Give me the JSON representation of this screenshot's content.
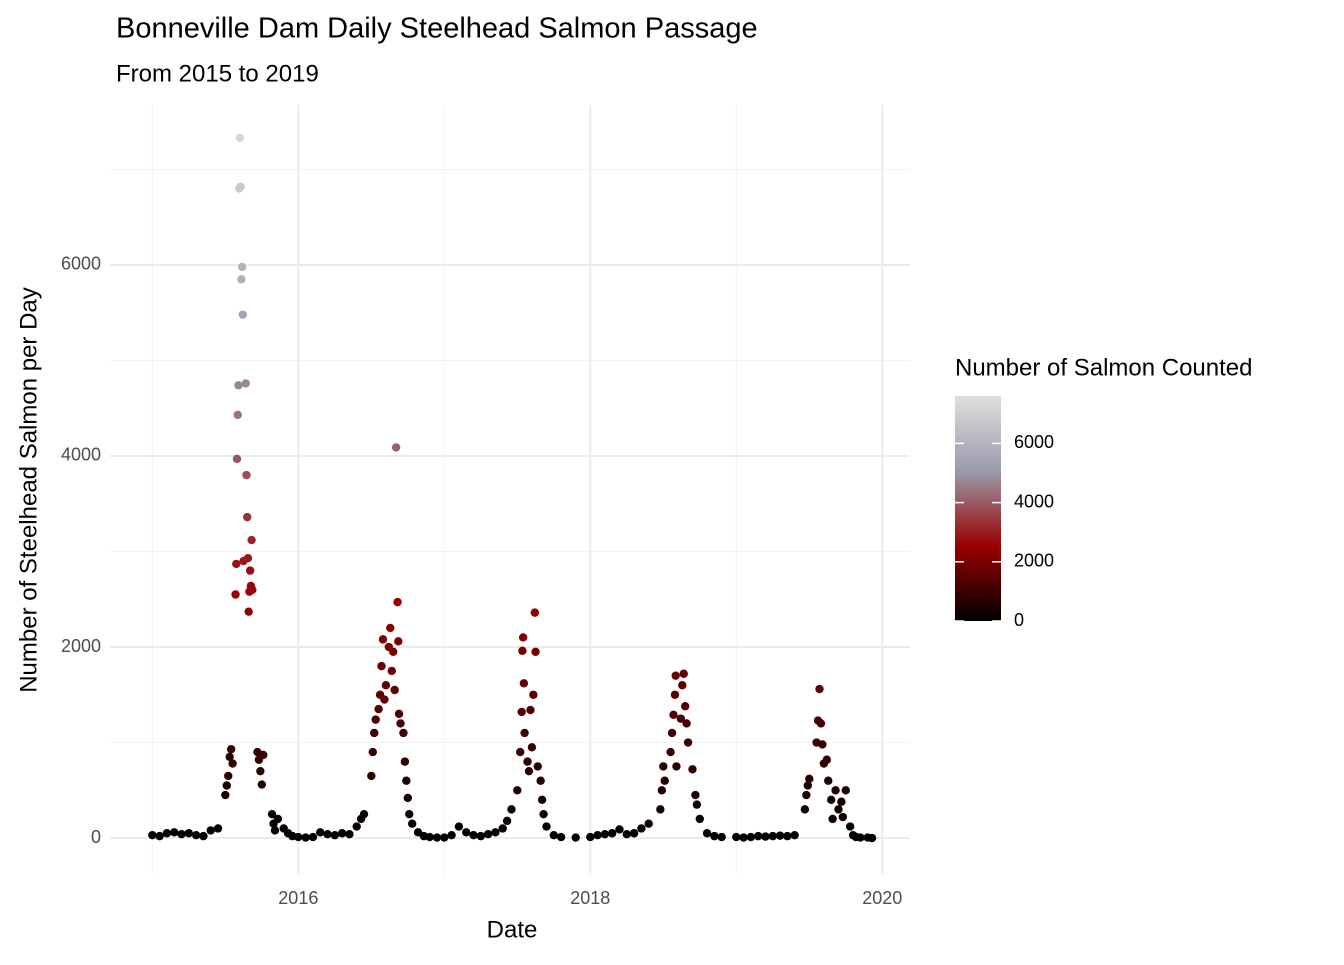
{
  "chart_data": {
    "type": "scatter",
    "title": "Bonneville Dam Daily Steelhead Salmon Passage",
    "subtitle": "From 2015 to 2019",
    "x_label": "Date",
    "y_label": "Number of Steelhead Salmon per Day",
    "legend_title": "Number of Salmon Counted",
    "xlim": [
      2014.71,
      2020.19
    ],
    "xticks": [
      2016,
      2018,
      2020
    ],
    "ylim": [
      -387,
      7675
    ],
    "yticks": [
      0,
      2000,
      4000,
      6000
    ],
    "grid": true,
    "colorlim": [
      0,
      7600
    ],
    "colorticks": [
      0,
      2000,
      4000,
      6000
    ],
    "colors": [
      "#000000",
      "#990000",
      "#9a9aab",
      "#dedede"
    ],
    "x": [
      2015.0,
      2015.05,
      2015.1,
      2015.15,
      2015.2,
      2015.25,
      2015.3,
      2015.35,
      2015.4,
      2015.45,
      2015.5,
      2015.51,
      2015.52,
      2015.53,
      2015.54,
      2015.55,
      2015.57,
      2015.575,
      2015.58,
      2015.585,
      2015.59,
      2015.595,
      2015.6,
      2015.605,
      2015.61,
      2015.615,
      2015.62,
      2015.625,
      2015.64,
      2015.645,
      2015.65,
      2015.655,
      2015.66,
      2015.665,
      2015.67,
      2015.675,
      2015.68,
      2015.685,
      2015.72,
      2015.73,
      2015.74,
      2015.75,
      2015.76,
      2015.82,
      2015.83,
      2015.84,
      2015.86,
      2015.9,
      2015.93,
      2015.96,
      2016.0,
      2016.05,
      2016.1,
      2016.15,
      2016.2,
      2016.25,
      2016.3,
      2016.35,
      2016.4,
      2016.43,
      2016.45,
      2016.5,
      2016.51,
      2016.52,
      2016.53,
      2016.55,
      2016.56,
      2016.57,
      2016.58,
      2016.59,
      2016.6,
      2016.62,
      2016.63,
      2016.64,
      2016.65,
      2016.66,
      2016.67,
      2016.68,
      2016.685,
      2016.69,
      2016.7,
      2016.72,
      2016.73,
      2016.74,
      2016.75,
      2016.76,
      2016.78,
      2016.82,
      2016.86,
      2016.9,
      2016.95,
      2017.0,
      2017.05,
      2017.1,
      2017.15,
      2017.2,
      2017.25,
      2017.3,
      2017.35,
      2017.4,
      2017.43,
      2017.46,
      2017.5,
      2017.52,
      2017.53,
      2017.535,
      2017.54,
      2017.545,
      2017.55,
      2017.57,
      2017.58,
      2017.59,
      2017.6,
      2017.61,
      2017.62,
      2017.625,
      2017.64,
      2017.66,
      2017.67,
      2017.68,
      2017.7,
      2017.75,
      2017.8,
      2017.9,
      2018.0,
      2018.05,
      2018.1,
      2018.15,
      2018.2,
      2018.25,
      2018.3,
      2018.35,
      2018.4,
      2018.48,
      2018.49,
      2018.5,
      2018.51,
      2018.55,
      2018.56,
      2018.57,
      2018.58,
      2018.585,
      2018.59,
      2018.62,
      2018.63,
      2018.64,
      2018.65,
      2018.66,
      2018.67,
      2018.7,
      2018.72,
      2018.73,
      2018.75,
      2018.8,
      2018.85,
      2018.9,
      2019.0,
      2019.05,
      2019.1,
      2019.15,
      2019.2,
      2019.25,
      2019.3,
      2019.35,
      2019.4,
      2019.47,
      2019.48,
      2019.49,
      2019.5,
      2019.55,
      2019.56,
      2019.57,
      2019.58,
      2019.59,
      2019.6,
      2019.62,
      2019.63,
      2019.65,
      2019.66,
      2019.68,
      2019.7,
      2019.72,
      2019.73,
      2019.75,
      2019.78,
      2019.8,
      2019.82,
      2019.85,
      2019.9,
      2019.93
    ],
    "values": [
      30,
      20,
      50,
      60,
      40,
      50,
      30,
      20,
      80,
      100,
      450,
      550,
      650,
      850,
      930,
      780,
      2550,
      2870,
      3970,
      4430,
      4740,
      6800,
      7330,
      6820,
      5850,
      5980,
      5480,
      2900,
      4760,
      3800,
      3360,
      2930,
      2370,
      2580,
      2800,
      2640,
      3120,
      2600,
      900,
      820,
      700,
      560,
      870,
      250,
      150,
      80,
      200,
      100,
      50,
      20,
      10,
      5,
      10,
      60,
      40,
      30,
      50,
      40,
      120,
      200,
      250,
      650,
      900,
      1100,
      1240,
      1350,
      1500,
      1800,
      2080,
      1450,
      1600,
      2000,
      2200,
      1750,
      1950,
      1550,
      4090,
      2470,
      2060,
      1300,
      1200,
      1100,
      800,
      600,
      420,
      250,
      150,
      60,
      20,
      10,
      5,
      5,
      30,
      120,
      60,
      30,
      20,
      40,
      60,
      100,
      180,
      300,
      500,
      900,
      1320,
      1960,
      2100,
      1620,
      1100,
      800,
      700,
      1340,
      950,
      1500,
      2360,
      1950,
      750,
      600,
      400,
      250,
      120,
      30,
      10,
      5,
      10,
      30,
      40,
      50,
      90,
      40,
      50,
      100,
      150,
      300,
      500,
      750,
      600,
      900,
      1100,
      1290,
      1500,
      1700,
      750,
      1250,
      1600,
      1720,
      1380,
      1200,
      1000,
      720,
      450,
      350,
      200,
      50,
      20,
      10,
      10,
      5,
      10,
      20,
      15,
      20,
      25,
      20,
      30,
      300,
      450,
      550,
      620,
      1000,
      1230,
      1560,
      1200,
      980,
      780,
      820,
      600,
      400,
      200,
      500,
      300,
      380,
      220,
      500,
      120,
      30,
      10,
      5,
      5,
      0
    ]
  }
}
